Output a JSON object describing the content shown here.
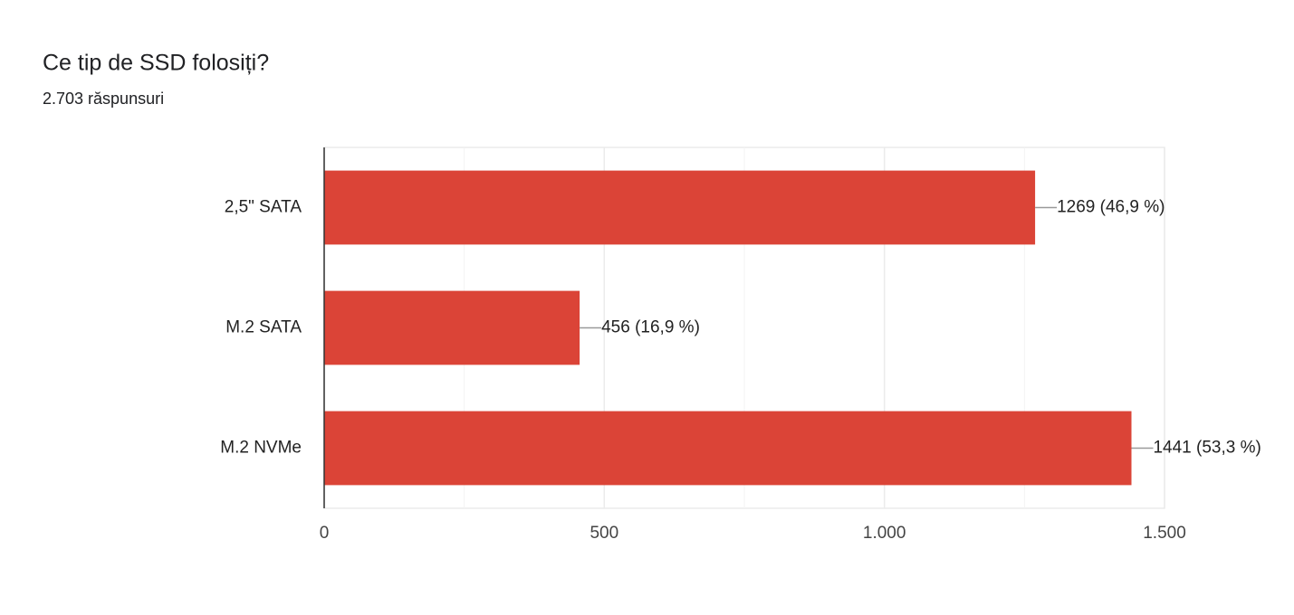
{
  "chart_data": {
    "type": "bar",
    "orientation": "horizontal",
    "title": "Ce tip de SSD folosiți?",
    "subtitle": "2.703 răspunsuri",
    "categories": [
      "2,5\" SATA",
      "M.2 SATA",
      "M.2 NVMe"
    ],
    "values": [
      1269,
      456,
      1441
    ],
    "value_labels": [
      "1269 (46,9 %)",
      "456 (16,9 %)",
      "1441 (53,3 %)"
    ],
    "color": "#db4437",
    "xlim": [
      0,
      1500
    ],
    "xticks": [
      0,
      500,
      {
        "value": 1000,
        "label": "1.000"
      },
      {
        "value": 1500,
        "label": "1.500"
      }
    ],
    "xminor": [
      250,
      750,
      1250
    ],
    "grid": true
  }
}
